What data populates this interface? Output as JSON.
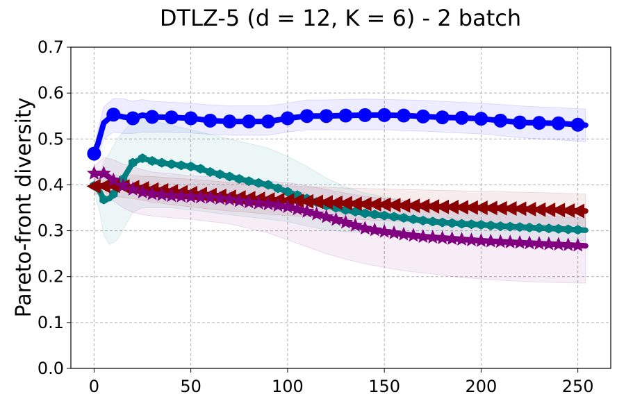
{
  "chart_data": {
    "type": "line",
    "title": "DTLZ-5 (d = 12, K = 6) - 2 batch",
    "xlabel": "",
    "ylabel": "Pareto-front diversity",
    "xlim": [
      -12,
      267
    ],
    "ylim": [
      0.0,
      0.7
    ],
    "xticks": [
      0,
      50,
      100,
      150,
      200,
      250
    ],
    "yticks": [
      0.0,
      0.1,
      0.2,
      0.3,
      0.4,
      0.5,
      0.6,
      0.7
    ],
    "ytick_labels": [
      "0.0",
      "0.1",
      "0.2",
      "0.3",
      "0.4",
      "0.5",
      "0.6",
      "0.7"
    ],
    "grid": true,
    "series": [
      {
        "name": "blue-circle",
        "color": "#0000ff",
        "marker": "circle",
        "x": [
          0,
          2,
          5,
          10,
          15,
          20,
          25,
          30,
          40,
          50,
          60,
          70,
          80,
          90,
          100,
          110,
          120,
          130,
          140,
          150,
          160,
          170,
          180,
          190,
          200,
          210,
          220,
          230,
          240,
          250,
          254
        ],
        "y": [
          0.468,
          0.49,
          0.535,
          0.553,
          0.548,
          0.545,
          0.552,
          0.548,
          0.547,
          0.545,
          0.54,
          0.538,
          0.538,
          0.538,
          0.545,
          0.55,
          0.55,
          0.551,
          0.552,
          0.552,
          0.551,
          0.549,
          0.547,
          0.546,
          0.544,
          0.54,
          0.536,
          0.535,
          0.534,
          0.531,
          0.53
        ],
        "lower": [
          0.455,
          0.46,
          0.5,
          0.515,
          0.512,
          0.512,
          0.515,
          0.515,
          0.515,
          0.513,
          0.51,
          0.508,
          0.508,
          0.508,
          0.515,
          0.52,
          0.52,
          0.52,
          0.52,
          0.52,
          0.518,
          0.517,
          0.515,
          0.513,
          0.511,
          0.507,
          0.503,
          0.5,
          0.498,
          0.495,
          0.494
        ],
        "upper": [
          0.48,
          0.52,
          0.57,
          0.588,
          0.588,
          0.582,
          0.586,
          0.582,
          0.58,
          0.578,
          0.574,
          0.572,
          0.572,
          0.572,
          0.578,
          0.585,
          0.585,
          0.586,
          0.587,
          0.586,
          0.585,
          0.584,
          0.582,
          0.58,
          0.578,
          0.575,
          0.572,
          0.57,
          0.568,
          0.566,
          0.565
        ]
      },
      {
        "name": "teal-hexagon",
        "color": "#008080",
        "marker": "hexagon",
        "x": [
          0,
          3,
          5,
          8,
          12,
          16,
          20,
          25,
          30,
          35,
          40,
          50,
          55,
          60,
          70,
          80,
          90,
          100,
          110,
          120,
          130,
          140,
          150,
          160,
          170,
          180,
          190,
          200,
          210,
          220,
          230,
          240,
          250,
          254
        ],
        "y": [
          0.398,
          0.385,
          0.368,
          0.37,
          0.39,
          0.42,
          0.448,
          0.458,
          0.452,
          0.448,
          0.445,
          0.44,
          0.435,
          0.428,
          0.418,
          0.408,
          0.4,
          0.385,
          0.37,
          0.355,
          0.345,
          0.338,
          0.333,
          0.328,
          0.322,
          0.318,
          0.315,
          0.313,
          0.31,
          0.308,
          0.306,
          0.304,
          0.302,
          0.301
        ],
        "lower": [
          0.385,
          0.34,
          0.29,
          0.27,
          0.28,
          0.31,
          0.34,
          0.35,
          0.35,
          0.35,
          0.35,
          0.345,
          0.343,
          0.34,
          0.335,
          0.33,
          0.325,
          0.32,
          0.31,
          0.302,
          0.298,
          0.295,
          0.292,
          0.29,
          0.288,
          0.286,
          0.284,
          0.283,
          0.282,
          0.281,
          0.28,
          0.279,
          0.278,
          0.278
        ],
        "upper": [
          0.41,
          0.42,
          0.45,
          0.47,
          0.5,
          0.52,
          0.54,
          0.545,
          0.54,
          0.535,
          0.53,
          0.52,
          0.515,
          0.51,
          0.5,
          0.49,
          0.48,
          0.462,
          0.44,
          0.415,
          0.395,
          0.382,
          0.374,
          0.366,
          0.358,
          0.352,
          0.347,
          0.344,
          0.34,
          0.337,
          0.334,
          0.331,
          0.328,
          0.327
        ]
      },
      {
        "name": "darkred-triangle",
        "color": "#8b0000",
        "marker": "triangle-left",
        "x": [
          0,
          10,
          20,
          30,
          40,
          50,
          60,
          70,
          80,
          90,
          100,
          110,
          120,
          130,
          140,
          150,
          160,
          170,
          180,
          190,
          200,
          210,
          220,
          230,
          240,
          250,
          254
        ],
        "y": [
          0.397,
          0.398,
          0.395,
          0.39,
          0.386,
          0.382,
          0.378,
          0.374,
          0.371,
          0.368,
          0.366,
          0.364,
          0.362,
          0.36,
          0.358,
          0.357,
          0.355,
          0.354,
          0.352,
          0.351,
          0.35,
          0.349,
          0.348,
          0.346,
          0.345,
          0.343,
          0.343
        ],
        "lower": [
          0.38,
          0.375,
          0.37,
          0.362,
          0.357,
          0.352,
          0.347,
          0.343,
          0.34,
          0.336,
          0.333,
          0.331,
          0.328,
          0.326,
          0.324,
          0.322,
          0.32,
          0.318,
          0.316,
          0.315,
          0.313,
          0.312,
          0.311,
          0.309,
          0.308,
          0.306,
          0.306
        ],
        "upper": [
          0.415,
          0.42,
          0.42,
          0.418,
          0.415,
          0.412,
          0.409,
          0.405,
          0.402,
          0.4,
          0.398,
          0.396,
          0.395,
          0.393,
          0.392,
          0.391,
          0.39,
          0.389,
          0.388,
          0.387,
          0.386,
          0.385,
          0.384,
          0.383,
          0.382,
          0.38,
          0.38
        ]
      },
      {
        "name": "purple-star",
        "color": "#800080",
        "marker": "star",
        "x": [
          0,
          5,
          10,
          15,
          20,
          25,
          30,
          40,
          50,
          60,
          70,
          80,
          90,
          100,
          110,
          120,
          130,
          140,
          150,
          160,
          170,
          180,
          190,
          200,
          210,
          220,
          230,
          240,
          250,
          254
        ],
        "y": [
          0.425,
          0.425,
          0.41,
          0.398,
          0.39,
          0.384,
          0.38,
          0.376,
          0.374,
          0.372,
          0.368,
          0.362,
          0.358,
          0.352,
          0.342,
          0.33,
          0.318,
          0.305,
          0.298,
          0.292,
          0.287,
          0.284,
          0.281,
          0.278,
          0.276,
          0.274,
          0.272,
          0.27,
          0.268,
          0.267
        ],
        "lower": [
          0.41,
          0.39,
          0.365,
          0.35,
          0.34,
          0.335,
          0.332,
          0.328,
          0.325,
          0.32,
          0.315,
          0.305,
          0.295,
          0.28,
          0.265,
          0.25,
          0.238,
          0.228,
          0.22,
          0.213,
          0.208,
          0.203,
          0.198,
          0.195,
          0.192,
          0.19,
          0.188,
          0.187,
          0.186,
          0.186
        ],
        "upper": [
          0.44,
          0.46,
          0.455,
          0.445,
          0.44,
          0.433,
          0.428,
          0.424,
          0.42,
          0.418,
          0.414,
          0.41,
          0.408,
          0.405,
          0.398,
          0.39,
          0.382,
          0.375,
          0.37,
          0.366,
          0.362,
          0.36,
          0.358,
          0.356,
          0.354,
          0.352,
          0.35,
          0.348,
          0.347,
          0.347
        ]
      }
    ]
  }
}
